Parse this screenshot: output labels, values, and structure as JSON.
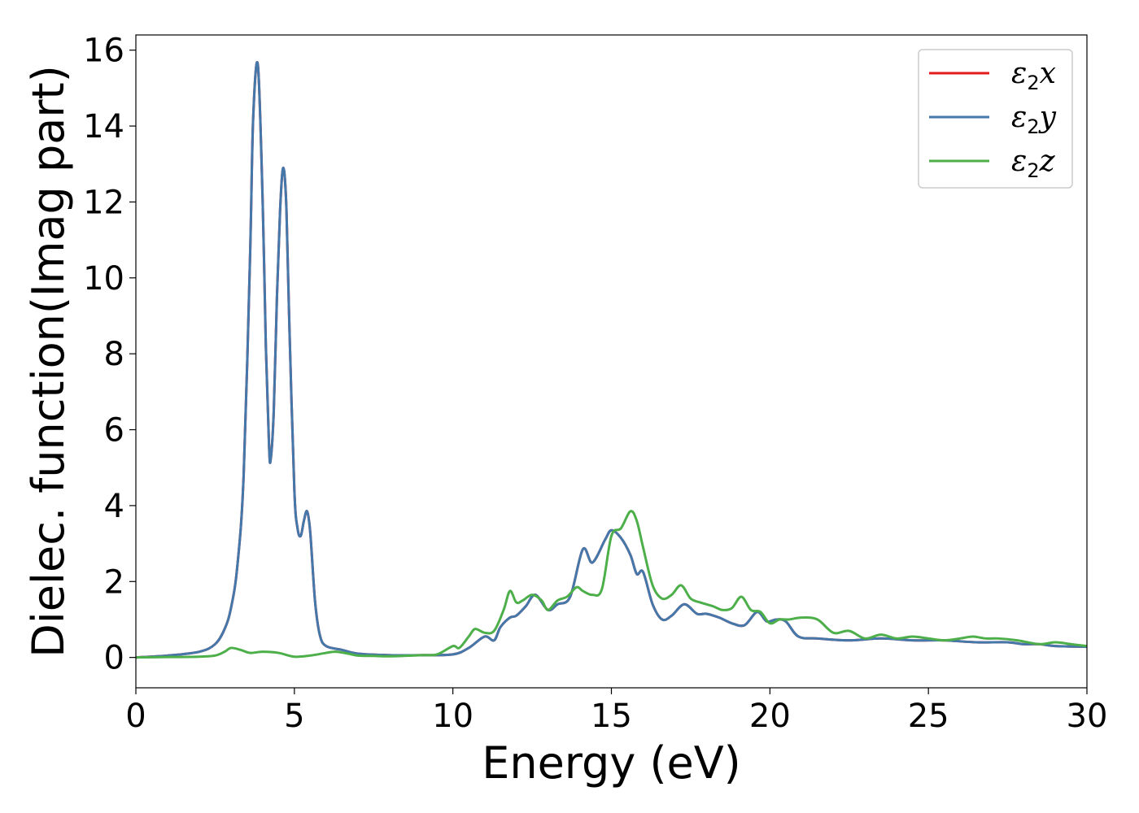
{
  "chart_data": {
    "type": "line",
    "title": "",
    "xlabel": "Energy (eV)",
    "ylabel": "Dielec. function(Imag part)",
    "xlim": [
      0,
      30
    ],
    "ylim": [
      -0.8,
      16.4
    ],
    "xticks": [
      0,
      5,
      10,
      15,
      20,
      25,
      30
    ],
    "yticks": [
      0,
      2,
      4,
      6,
      8,
      10,
      12,
      14,
      16
    ],
    "grid": false,
    "legend_position": "top-right",
    "series": [
      {
        "name": "ε2x",
        "legend_base": "ε",
        "legend_sub": "2",
        "legend_var": "x",
        "color": "#e41a1c",
        "x": [
          0,
          1,
          2,
          2.5,
          2.8,
          3.0,
          3.2,
          3.4,
          3.6,
          3.7,
          3.85,
          4.0,
          4.1,
          4.2,
          4.25,
          4.35,
          4.45,
          4.55,
          4.65,
          4.75,
          4.85,
          5.0,
          5.1,
          5.2,
          5.3,
          5.4,
          5.5,
          5.65,
          5.8,
          6.0,
          6.5,
          7,
          8,
          9,
          10,
          10.5,
          11,
          11.3,
          11.5,
          11.8,
          12.0,
          12.3,
          12.6,
          13.0,
          13.3,
          13.7,
          14.1,
          14.4,
          14.8,
          15.0,
          15.3,
          15.6,
          15.8,
          16.0,
          16.3,
          16.6,
          16.9,
          17.3,
          17.7,
          18.0,
          18.4,
          18.8,
          19.2,
          19.6,
          19.9,
          20.2,
          20.5,
          20.9,
          21.5,
          22.5,
          23.5,
          24.5,
          25.5,
          26.5,
          27.5,
          28.0,
          28.5,
          29,
          30
        ],
        "values": [
          0.0,
          0.05,
          0.15,
          0.35,
          0.75,
          1.3,
          2.4,
          4.8,
          10.5,
          14.2,
          15.6,
          12.0,
          8.2,
          5.6,
          5.2,
          6.5,
          9.5,
          11.8,
          12.9,
          11.8,
          8.5,
          4.4,
          3.4,
          3.2,
          3.6,
          3.85,
          3.3,
          1.5,
          0.6,
          0.3,
          0.2,
          0.1,
          0.06,
          0.06,
          0.08,
          0.25,
          0.55,
          0.45,
          0.8,
          1.05,
          1.1,
          1.35,
          1.65,
          1.25,
          1.4,
          1.6,
          2.85,
          2.5,
          3.1,
          3.35,
          3.15,
          2.7,
          2.2,
          2.25,
          1.4,
          1.0,
          1.1,
          1.4,
          1.15,
          1.15,
          1.05,
          0.9,
          0.85,
          1.2,
          0.95,
          1.0,
          0.95,
          0.55,
          0.5,
          0.45,
          0.5,
          0.45,
          0.45,
          0.4,
          0.4,
          0.35,
          0.35,
          0.3,
          0.28
        ]
      },
      {
        "name": "ε2y",
        "legend_base": "ε",
        "legend_sub": "2",
        "legend_var": "y",
        "color": "#4477aa",
        "x": [
          0,
          1,
          2,
          2.5,
          2.8,
          3.0,
          3.2,
          3.4,
          3.6,
          3.7,
          3.85,
          4.0,
          4.1,
          4.2,
          4.25,
          4.35,
          4.45,
          4.55,
          4.65,
          4.75,
          4.85,
          5.0,
          5.1,
          5.2,
          5.3,
          5.4,
          5.5,
          5.65,
          5.8,
          6.0,
          6.5,
          7,
          8,
          9,
          10,
          10.5,
          11,
          11.3,
          11.5,
          11.8,
          12.0,
          12.3,
          12.6,
          13.0,
          13.3,
          13.7,
          14.1,
          14.4,
          14.8,
          15.0,
          15.3,
          15.6,
          15.8,
          16.0,
          16.3,
          16.6,
          16.9,
          17.3,
          17.7,
          18.0,
          18.4,
          18.8,
          19.2,
          19.6,
          19.9,
          20.2,
          20.5,
          20.9,
          21.5,
          22.5,
          23.5,
          24.5,
          25.5,
          26.5,
          27.5,
          28.0,
          28.5,
          29,
          30
        ],
        "values": [
          0.0,
          0.05,
          0.15,
          0.35,
          0.75,
          1.3,
          2.4,
          4.8,
          10.5,
          14.2,
          15.6,
          12.0,
          8.2,
          5.6,
          5.2,
          6.5,
          9.5,
          11.8,
          12.9,
          11.8,
          8.5,
          4.4,
          3.4,
          3.2,
          3.6,
          3.85,
          3.3,
          1.5,
          0.6,
          0.3,
          0.2,
          0.1,
          0.06,
          0.06,
          0.08,
          0.25,
          0.55,
          0.45,
          0.8,
          1.05,
          1.1,
          1.35,
          1.65,
          1.25,
          1.4,
          1.6,
          2.85,
          2.5,
          3.1,
          3.35,
          3.15,
          2.7,
          2.2,
          2.25,
          1.4,
          1.0,
          1.1,
          1.4,
          1.15,
          1.15,
          1.05,
          0.9,
          0.85,
          1.2,
          0.95,
          1.0,
          0.95,
          0.55,
          0.5,
          0.45,
          0.5,
          0.45,
          0.45,
          0.4,
          0.4,
          0.35,
          0.35,
          0.3,
          0.28
        ]
      },
      {
        "name": "ε2z",
        "legend_base": "ε",
        "legend_sub": "2",
        "legend_var": "z",
        "color": "#4daf4a",
        "x": [
          0,
          1,
          2,
          2.5,
          2.8,
          3.0,
          3.3,
          3.6,
          4.0,
          4.5,
          5.0,
          5.5,
          6.0,
          6.3,
          6.7,
          7.0,
          7.5,
          8,
          9,
          9.5,
          10,
          10.2,
          10.5,
          10.7,
          11.0,
          11.3,
          11.6,
          11.8,
          12.0,
          12.2,
          12.5,
          12.8,
          13.0,
          13.3,
          13.6,
          13.9,
          14.1,
          14.4,
          14.7,
          15.0,
          15.3,
          15.6,
          15.8,
          16.0,
          16.3,
          16.6,
          16.9,
          17.2,
          17.5,
          17.8,
          18.2,
          18.5,
          18.8,
          19.1,
          19.4,
          19.7,
          20.0,
          20.3,
          20.6,
          21.0,
          21.5,
          22.0,
          22.5,
          23.0,
          23.5,
          24.0,
          24.5,
          25,
          25.5,
          26,
          26.4,
          26.8,
          27.2,
          27.8,
          28.5,
          29.0,
          29.5,
          30
        ],
        "values": [
          0.0,
          0.01,
          0.02,
          0.05,
          0.15,
          0.25,
          0.2,
          0.12,
          0.15,
          0.12,
          0.02,
          0.05,
          0.12,
          0.15,
          0.1,
          0.05,
          0.04,
          0.03,
          0.06,
          0.08,
          0.3,
          0.25,
          0.55,
          0.75,
          0.65,
          0.7,
          1.25,
          1.75,
          1.45,
          1.5,
          1.65,
          1.5,
          1.25,
          1.5,
          1.6,
          1.85,
          1.75,
          1.65,
          1.8,
          3.2,
          3.4,
          3.85,
          3.6,
          2.9,
          1.9,
          1.55,
          1.65,
          1.9,
          1.55,
          1.45,
          1.35,
          1.25,
          1.3,
          1.6,
          1.25,
          1.2,
          0.9,
          1.0,
          1.0,
          1.05,
          1.0,
          0.65,
          0.7,
          0.5,
          0.6,
          0.5,
          0.55,
          0.5,
          0.45,
          0.5,
          0.55,
          0.5,
          0.5,
          0.45,
          0.35,
          0.4,
          0.35,
          0.3
        ]
      }
    ]
  }
}
